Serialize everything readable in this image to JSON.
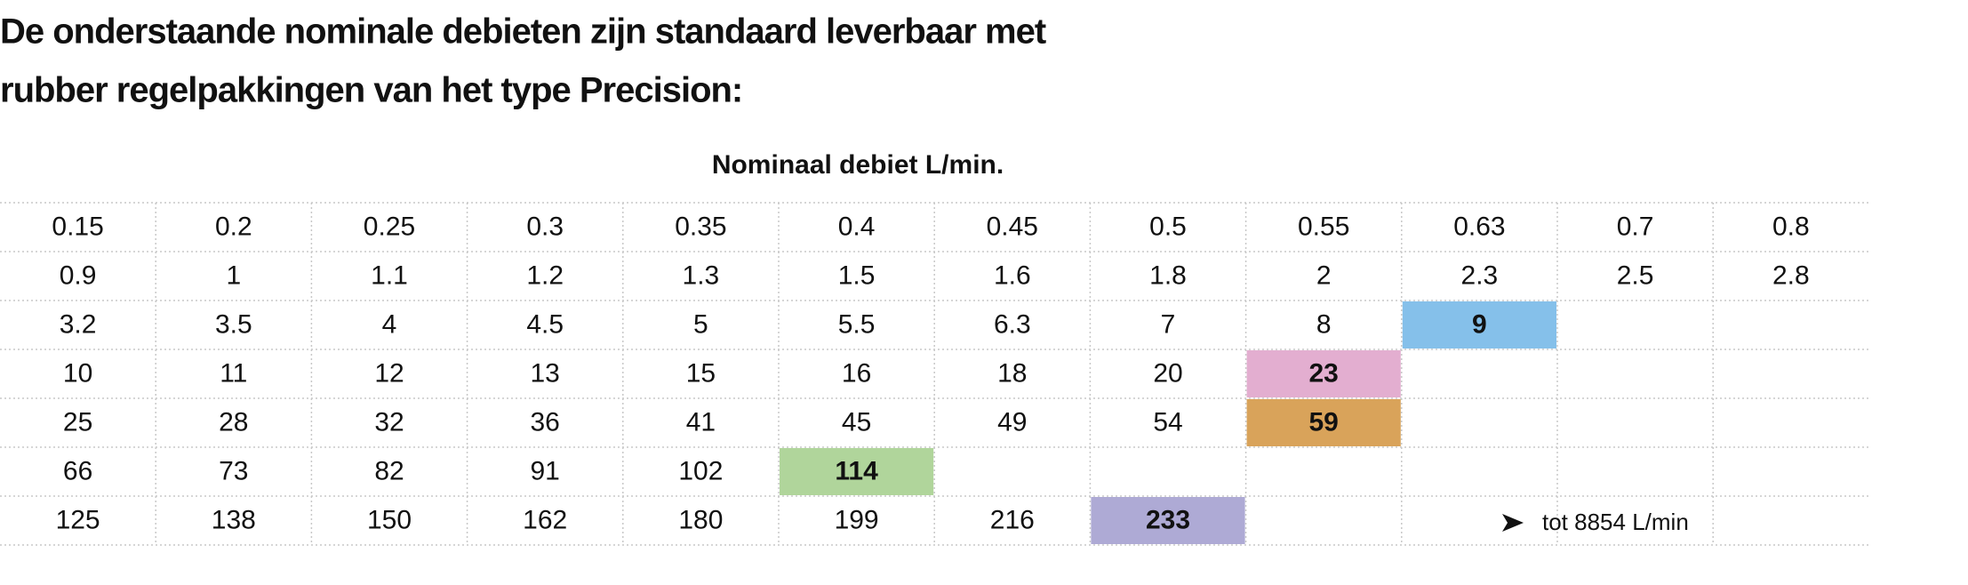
{
  "header": {
    "title": [
      "De onderstaande nominale debieten zijn standaard leverbaar met",
      "rubber regelpakkingen van het type Precision:"
    ]
  },
  "table": {
    "caption": "Nominaal debiet L/min.",
    "rows": [
      [
        "0.15",
        "0.2",
        "0.25",
        "0.3",
        "0.35",
        "0.4",
        "0.45",
        "0.5",
        "0.55",
        "0.63",
        "0.7",
        "0.8"
      ],
      [
        "0.9",
        "1",
        "1.1",
        "1.2",
        "1.3",
        "1.5",
        "1.6",
        "1.8",
        "2",
        "2.3",
        "2.5",
        "2.8"
      ],
      [
        "3.2",
        "3.5",
        "4",
        "4.5",
        "5",
        "5.5",
        "6.3",
        "7",
        "8",
        {
          "text": "9",
          "color": "#85c0ea"
        },
        null,
        null
      ],
      [
        "10",
        "11",
        "12",
        "13",
        "15",
        "16",
        "18",
        "20",
        {
          "text": "23",
          "color": "#e3aed0"
        },
        null,
        null,
        null
      ],
      [
        "25",
        "28",
        "32",
        "36",
        "41",
        "45",
        "49",
        "54",
        {
          "text": "59",
          "color": "#d9a35a"
        },
        null,
        null,
        null
      ],
      [
        "66",
        "73",
        "82",
        "91",
        "102",
        {
          "text": "114",
          "color": "#b0d59b"
        },
        null,
        null,
        null,
        null,
        null,
        null
      ],
      [
        "125",
        "138",
        "150",
        "162",
        "180",
        "199",
        "216",
        {
          "text": "233",
          "color": "#aeaad5"
        },
        null,
        null,
        null,
        null
      ]
    ],
    "note": "tot 8854 L/min"
  }
}
